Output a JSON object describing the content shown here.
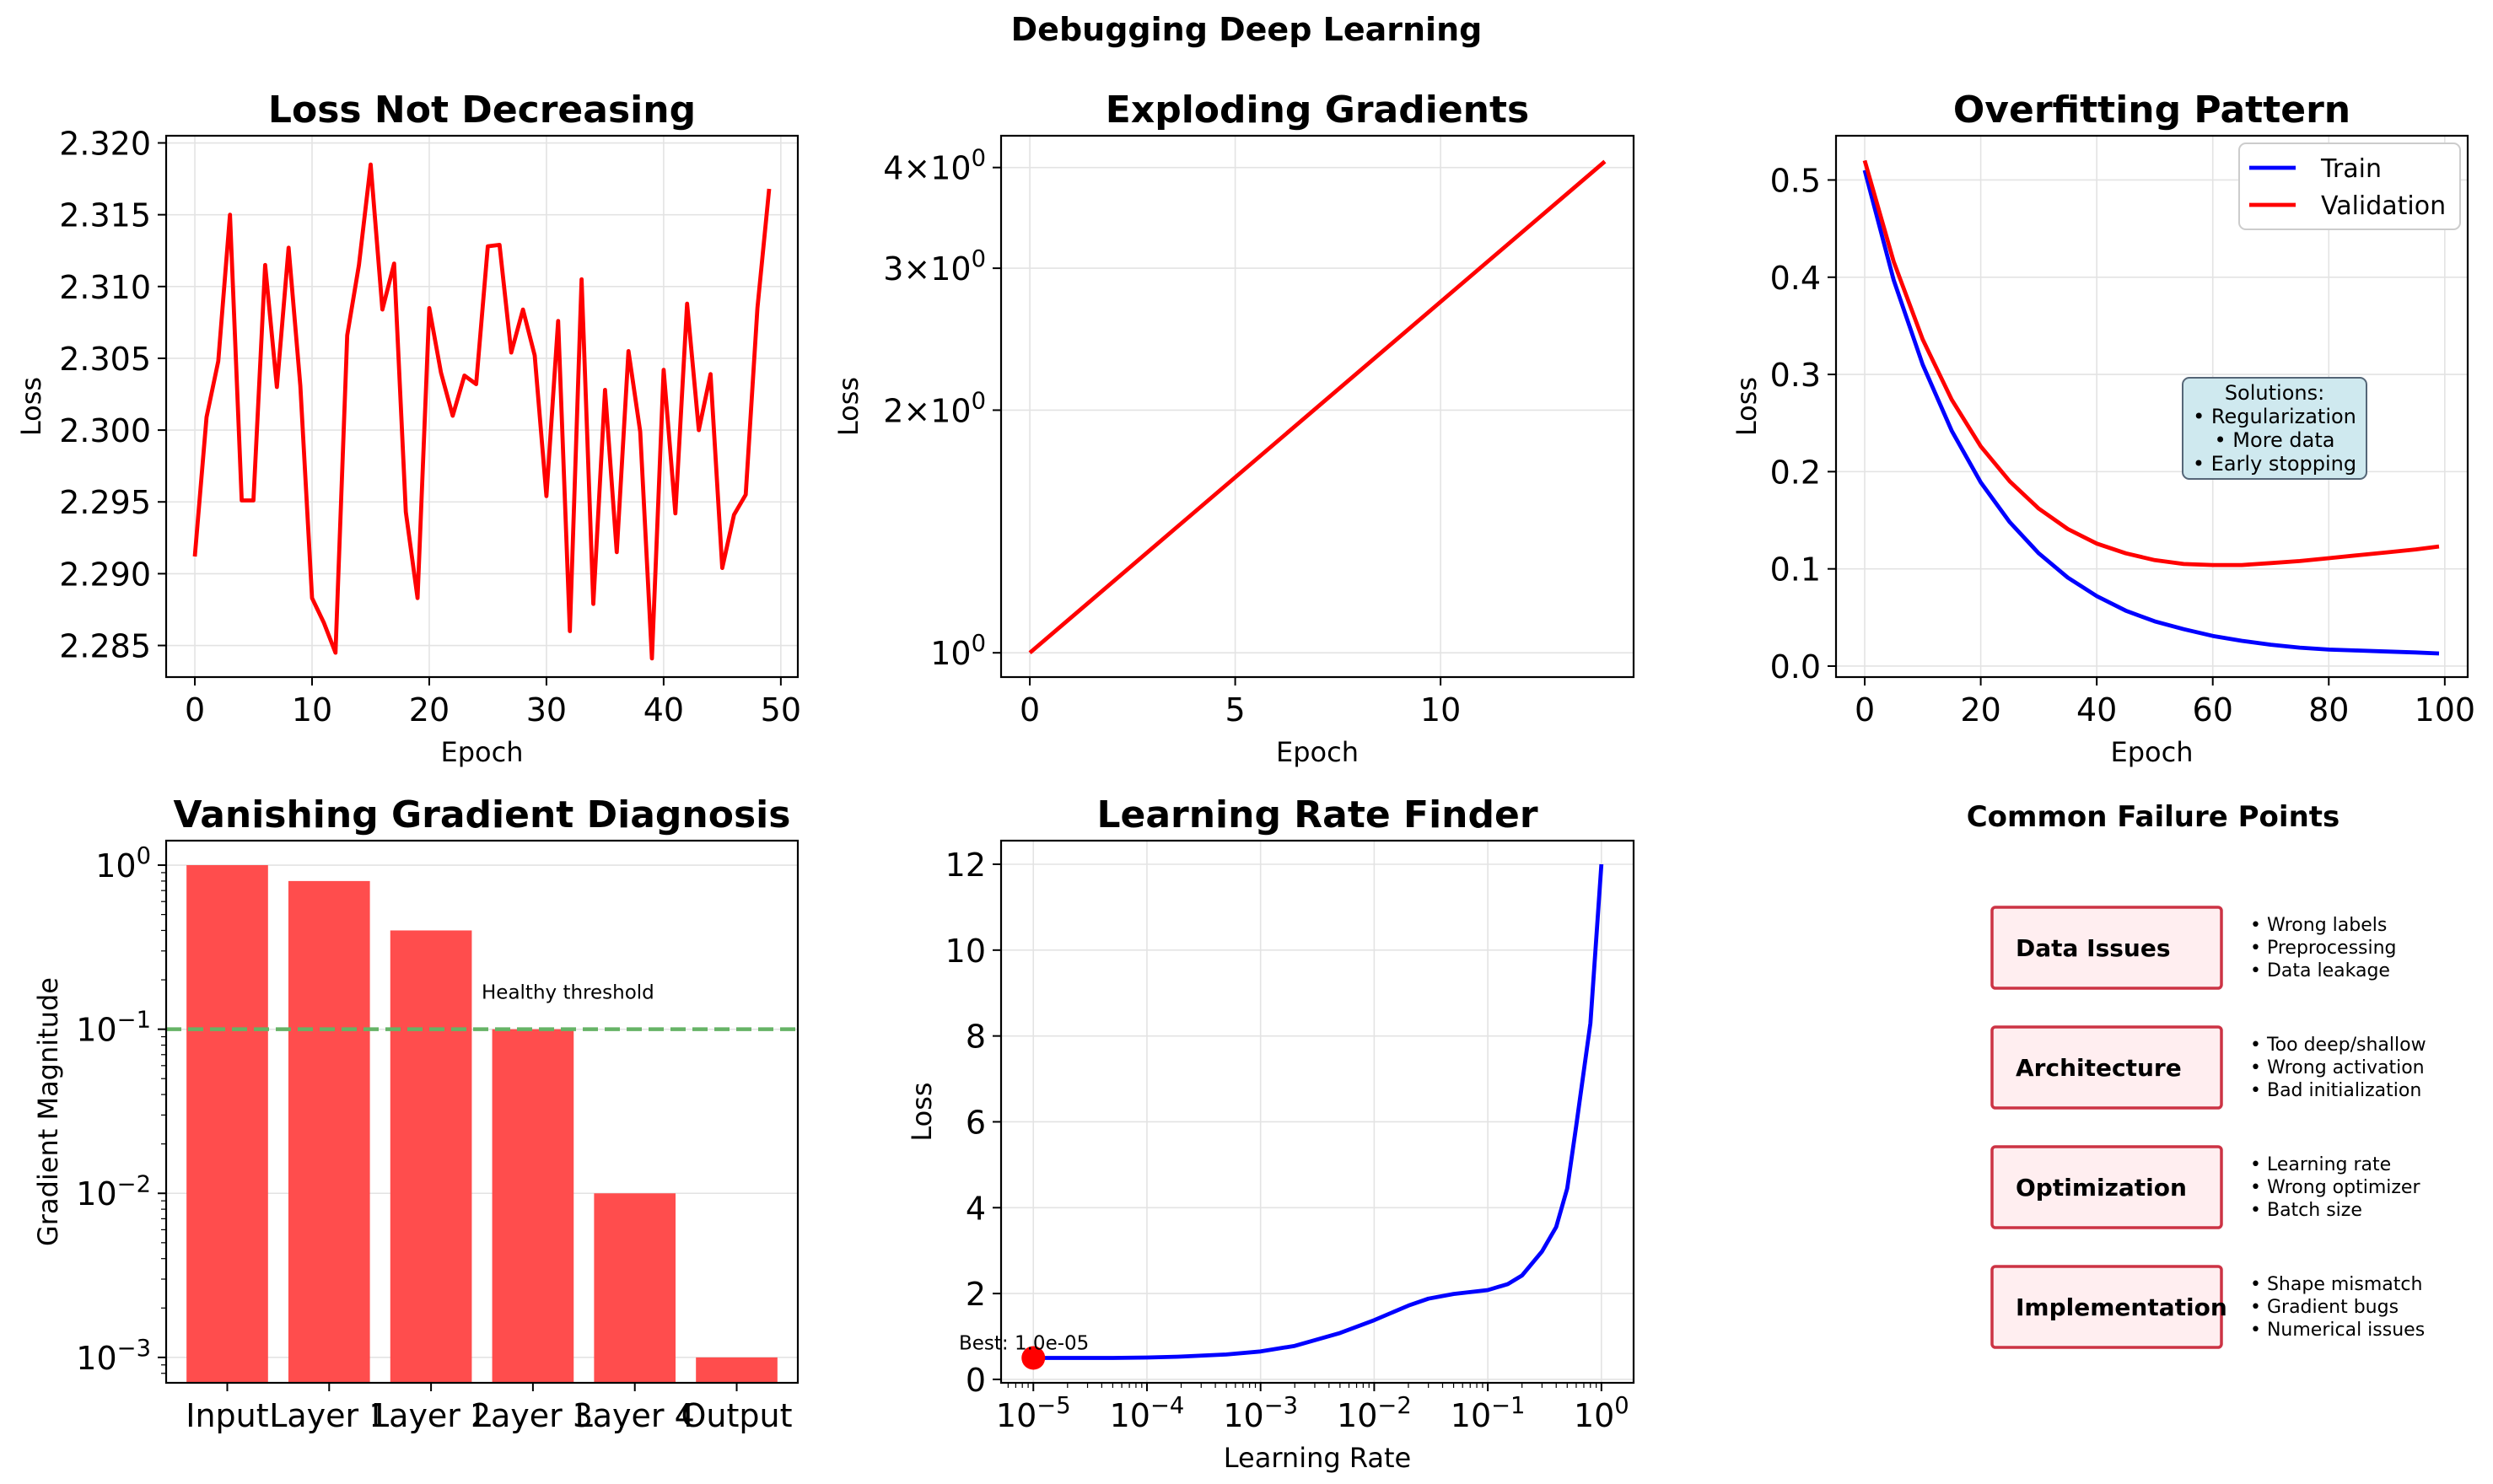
{
  "figure": {
    "suptitle": "Debugging Deep Learning"
  },
  "colors": {
    "red": "#ff0000",
    "blue": "#0000ff",
    "bar": "#ff4d4d",
    "threshold": "#66b366",
    "note_fill": "#cfe9ef",
    "box_fill": "#ffeef0",
    "box_edge": "#cc3344"
  },
  "chart_data": [
    {
      "id": "loss-plateau",
      "type": "line",
      "title": "Loss Not Decreasing",
      "xlabel": "Epoch",
      "ylabel": "Loss",
      "xlim": [
        -2.45,
        51.45
      ],
      "ylim": [
        2.2828,
        2.3205
      ],
      "xticks": [
        0,
        10,
        20,
        30,
        40,
        50
      ],
      "yticks": [
        2.285,
        2.29,
        2.295,
        2.3,
        2.305,
        2.31,
        2.315,
        2.32
      ],
      "ytick_labels": [
        "2.285",
        "2.290",
        "2.295",
        "2.300",
        "2.305",
        "2.310",
        "2.315",
        "2.320"
      ],
      "grid": true,
      "series": [
        {
          "color": "#ff0000",
          "x": [
            0,
            1,
            2,
            3,
            4,
            5,
            6,
            7,
            8,
            9,
            10,
            11,
            12,
            13,
            14,
            15,
            16,
            17,
            18,
            19,
            20,
            21,
            22,
            23,
            24,
            25,
            26,
            27,
            28,
            29,
            30,
            31,
            32,
            33,
            34,
            35,
            36,
            37,
            38,
            39,
            40,
            41,
            42,
            43,
            44,
            45,
            46,
            47,
            48,
            49
          ],
          "y": [
            2.2912,
            2.3009,
            2.3048,
            2.315,
            2.2951,
            2.2951,
            2.3115,
            2.303,
            2.3127,
            2.3031,
            2.2883,
            2.2866,
            2.2845,
            2.3066,
            2.3115,
            2.3185,
            2.3084,
            2.3116,
            2.2943,
            2.2883,
            2.3085,
            2.304,
            2.301,
            2.3038,
            2.3032,
            2.3128,
            2.3129,
            2.3054,
            2.3084,
            2.3052,
            2.2954,
            2.3076,
            2.286,
            2.3105,
            2.2879,
            2.3028,
            2.2915,
            2.3055,
            2.2999,
            2.2841,
            2.3042,
            2.2942,
            2.3088,
            2.3,
            2.3039,
            2.2904,
            2.2941,
            2.2955,
            2.3085,
            2.3168
          ]
        }
      ]
    },
    {
      "id": "exploding-gradients",
      "type": "line",
      "title": "Exploding Gradients",
      "xlabel": "Epoch",
      "ylabel": "Loss",
      "xlim": [
        -0.7,
        14.7
      ],
      "ylim": [
        0.933,
        4.38
      ],
      "yscale": "log",
      "xticks": [
        0,
        5,
        10
      ],
      "yticks": [
        1,
        2,
        3,
        4
      ],
      "ytick_labels": [
        "10^0",
        "2×10^0",
        "3×10^0",
        "4×10^0"
      ],
      "grid": true,
      "series": [
        {
          "color": "#ff0000",
          "x": [
            0,
            14
          ],
          "y": [
            1.0,
            4.07
          ]
        }
      ]
    },
    {
      "id": "overfitting",
      "type": "line",
      "title": "Overfitting Pattern",
      "xlabel": "Epoch",
      "ylabel": "Loss",
      "xlim": [
        -4.95,
        103.95
      ],
      "ylim": [
        -0.0113,
        0.5455
      ],
      "xticks": [
        0,
        20,
        40,
        60,
        80,
        100
      ],
      "yticks": [
        0.0,
        0.1,
        0.2,
        0.3,
        0.4,
        0.5
      ],
      "ytick_labels": [
        "0.0",
        "0.1",
        "0.2",
        "0.3",
        "0.4",
        "0.5"
      ],
      "grid": true,
      "legend": {
        "position": "upper right"
      },
      "series": [
        {
          "name": "Train",
          "color": "#0000ff",
          "x": [
            0,
            5,
            10,
            15,
            20,
            25,
            30,
            35,
            40,
            45,
            50,
            55,
            60,
            65,
            70,
            75,
            80,
            85,
            90,
            95,
            99
          ],
          "y": [
            0.51,
            0.397,
            0.31,
            0.242,
            0.189,
            0.148,
            0.116,
            0.091,
            0.072,
            0.057,
            0.046,
            0.038,
            0.031,
            0.026,
            0.022,
            0.019,
            0.017,
            0.016,
            0.015,
            0.014,
            0.013
          ]
        },
        {
          "name": "Validation",
          "color": "#ff0000",
          "x": [
            0,
            5,
            10,
            15,
            20,
            25,
            30,
            35,
            40,
            45,
            50,
            55,
            60,
            65,
            70,
            75,
            80,
            85,
            90,
            95,
            99
          ],
          "y": [
            0.52,
            0.416,
            0.336,
            0.274,
            0.226,
            0.19,
            0.162,
            0.141,
            0.126,
            0.116,
            0.109,
            0.105,
            0.104,
            0.104,
            0.106,
            0.108,
            0.111,
            0.114,
            0.117,
            0.12,
            0.123
          ]
        }
      ],
      "annotation": {
        "lines": [
          "Solutions:",
          "• Regularization",
          "• More data",
          "• Early stopping"
        ],
        "x": 70,
        "y": 0.25
      }
    },
    {
      "id": "vanishing-gradient",
      "type": "bar",
      "title": "Vanishing Gradient Diagnosis",
      "ylabel": "Gradient Magnitude",
      "yscale": "log",
      "ylim": [
        0.0007,
        1.41
      ],
      "categories": [
        "Input",
        "Layer 1",
        "Layer 2",
        "Layer 3",
        "Layer 4",
        "Output"
      ],
      "values": [
        1.0,
        0.8,
        0.4,
        0.1,
        0.01,
        0.001
      ],
      "yticks": [
        0.001,
        0.01,
        0.1,
        1
      ],
      "ytick_labels": [
        "10^-3",
        "10^-2",
        "10^-1",
        "10^0"
      ],
      "grid": true,
      "threshold": {
        "value": 0.1,
        "label": "Healthy threshold"
      }
    },
    {
      "id": "lr-finder",
      "type": "line",
      "title": "Learning Rate Finder",
      "xlabel": "Learning Rate",
      "ylabel": "Loss",
      "xscale": "log",
      "xlim": [
        5.2e-06,
        1.92
      ],
      "ylim": [
        -0.08,
        12.55
      ],
      "xticks": [
        1e-05,
        0.0001,
        0.001,
        0.01,
        0.1,
        1
      ],
      "xtick_labels": [
        "10^-5",
        "10^-4",
        "10^-3",
        "10^-2",
        "10^-1",
        "10^0"
      ],
      "yticks": [
        0,
        2,
        4,
        6,
        8,
        10,
        12
      ],
      "ytick_labels": [
        "0",
        "2",
        "4",
        "6",
        "8",
        "10",
        "12"
      ],
      "grid": true,
      "series": [
        {
          "color": "#0000ff",
          "x": [
            1e-05,
            2e-05,
            5e-05,
            0.0001,
            0.0002,
            0.0005,
            0.001,
            0.002,
            0.005,
            0.01,
            0.02,
            0.03,
            0.05,
            0.1,
            0.15,
            0.2,
            0.3,
            0.4,
            0.5,
            0.6,
            0.8,
            1.0
          ],
          "y": [
            0.5,
            0.5,
            0.5,
            0.51,
            0.53,
            0.58,
            0.65,
            0.78,
            1.08,
            1.38,
            1.72,
            1.88,
            1.99,
            2.08,
            2.22,
            2.42,
            2.98,
            3.55,
            4.45,
            5.9,
            8.3,
            12.0
          ]
        }
      ],
      "best_point": {
        "x": 1e-05,
        "y": 0.5,
        "label": "Best: 1.0e-05"
      }
    }
  ],
  "failure_panel": {
    "title": "Common Failure Points",
    "items": [
      {
        "label": "Data Issues",
        "notes": [
          "• Wrong labels",
          "• Preprocessing",
          "• Data leakage"
        ]
      },
      {
        "label": "Architecture",
        "notes": [
          "• Too deep/shallow",
          "• Wrong activation",
          "• Bad initialization"
        ]
      },
      {
        "label": "Optimization",
        "notes": [
          "• Learning rate",
          "• Wrong optimizer",
          "• Batch size"
        ]
      },
      {
        "label": "Implementation",
        "notes": [
          "• Shape mismatch",
          "• Gradient bugs",
          "• Numerical issues"
        ]
      }
    ]
  }
}
